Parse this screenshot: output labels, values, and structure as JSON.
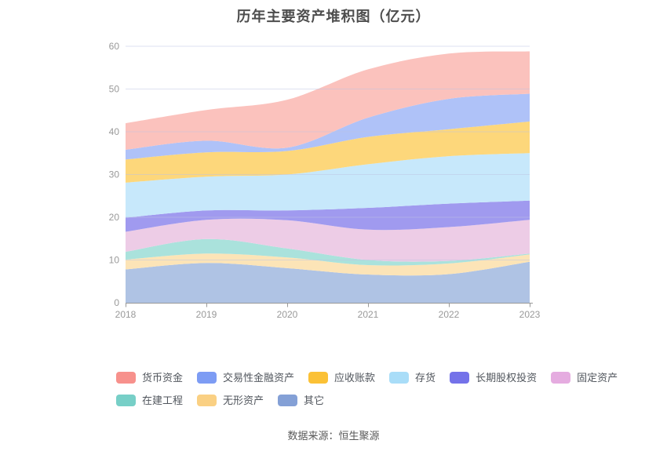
{
  "caption": "数据来源：恒生聚源",
  "colors": {
    "title": "#4d4d4d",
    "axis_label": "#999999",
    "axis_line": "#999999",
    "grid": "#dee1f0",
    "legend_text": "#51565d",
    "caption": "#595959"
  },
  "chart_data": {
    "type": "area",
    "stacked": true,
    "smooth": true,
    "grid": true,
    "legend_position": "bottom",
    "title": "历年主要资产堆积图（亿元）",
    "x": [
      "2018",
      "2019",
      "2020",
      "2021",
      "2022",
      "2023"
    ],
    "xlabel": "",
    "ylabel": "",
    "ylim": [
      0,
      60
    ],
    "ytick_step": 10,
    "series": [
      {
        "id": "others",
        "name": "其它",
        "color": "#84a0d6",
        "fill": "#afc3e4",
        "values": [
          7.8,
          9.3,
          8.1,
          6.6,
          6.7,
          9.6
        ]
      },
      {
        "id": "intangible-assets",
        "name": "无形资产",
        "color": "#fad083",
        "fill": "#fce4b7",
        "values": [
          2.3,
          2.2,
          2.5,
          2.2,
          2.5,
          1.7
        ]
      },
      {
        "id": "construction-in-progress",
        "name": "在建工程",
        "color": "#77cfc7",
        "fill": "#aae2dc",
        "values": [
          1.8,
          3.4,
          2.1,
          1.2,
          0.6,
          0.2
        ]
      },
      {
        "id": "fixed-assets",
        "name": "固定资产",
        "color": "#e5ace0",
        "fill": "#edcce6",
        "values": [
          4.7,
          4.5,
          6.6,
          7.1,
          7.9,
          7.9
        ]
      },
      {
        "id": "long-term-equity-investment",
        "name": "长期股权投资",
        "color": "#7472e9",
        "fill": "#a09aef",
        "values": [
          3.3,
          2.2,
          2.3,
          5.1,
          5.5,
          4.5
        ]
      },
      {
        "id": "inventory",
        "name": "存货",
        "color": "#a9ddf8",
        "fill": "#c7e8fb",
        "values": [
          8.2,
          7.9,
          8.4,
          10.2,
          11.1,
          11.1
        ]
      },
      {
        "id": "accounts-receivable",
        "name": "应收账款",
        "color": "#fbc136",
        "fill": "#fdd77b",
        "values": [
          5.4,
          5.7,
          5.5,
          6.4,
          6.3,
          7.4
        ]
      },
      {
        "id": "trading-financial-assets",
        "name": "交易性金融资产",
        "color": "#7d9cf4",
        "fill": "#afc2f8",
        "values": [
          2.3,
          2.7,
          0.8,
          4.5,
          7.1,
          6.5
        ]
      },
      {
        "id": "monetary-funds",
        "name": "货币资金",
        "color": "#f7918c",
        "fill": "#fbc2bd",
        "values": [
          6.2,
          7.2,
          11.2,
          11.3,
          10.6,
          9.9
        ]
      }
    ],
    "legend_rows": [
      [
        "货币资金",
        "交易性金融资产",
        "应收账款",
        "存货",
        "长期股权投资",
        "固定资产"
      ],
      [
        "在建工程",
        "无形资产",
        "其它"
      ]
    ]
  }
}
